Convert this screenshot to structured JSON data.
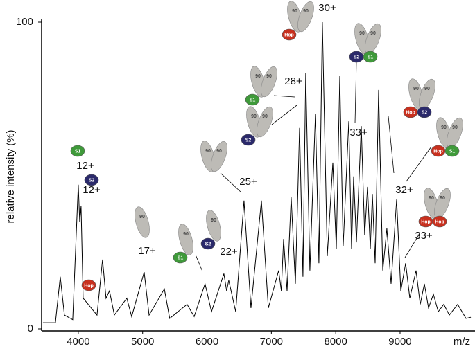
{
  "chart_data": {
    "type": "line",
    "y_label": "relative intensity (%)",
    "x_label": "m/z",
    "xlim": [
      3430,
      10110
    ],
    "ylim": [
      0,
      100
    ],
    "xticks": [
      4000,
      5000,
      6000,
      7000,
      8000,
      9000
    ],
    "yticks": [
      0,
      100
    ],
    "x": [
      3450,
      3644,
      3720,
      3785,
      3914,
      4000,
      4022,
      4043,
      4075,
      4291,
      4377,
      4431,
      4485,
      4560,
      4754,
      4830,
      5024,
      5100,
      5337,
      5420,
      5690,
      5800,
      5970,
      6070,
      6262,
      6305,
      6338,
      6446,
      6575,
      6683,
      6845,
      6953,
      7114,
      7155,
      7190,
      7244,
      7308,
      7373,
      7438,
      7491,
      7534,
      7599,
      7685,
      7739,
      7793,
      7869,
      7955,
      8009,
      8063,
      8116,
      8203,
      8246,
      8278,
      8321,
      8397,
      8450,
      8494,
      8537,
      8569,
      8612,
      8666,
      8731,
      8795,
      8860,
      8946,
      9011,
      9086,
      9151,
      9248,
      9313,
      9377,
      9442,
      9517,
      9593,
      9679,
      9765,
      9894,
      10024,
      10100
    ],
    "series": [
      {
        "color": "#000000",
        "values": [
          2,
          2,
          17,
          4.5,
          3,
          47,
          35,
          40,
          10,
          4.5,
          22.6,
          10,
          12.4,
          4.5,
          10,
          4,
          18.5,
          4.5,
          13,
          3.4,
          8,
          4,
          14.7,
          5.6,
          18,
          12.4,
          15.8,
          5.6,
          41.8,
          6.8,
          41.8,
          6.8,
          19,
          12.4,
          29.3,
          12.4,
          42.9,
          14.7,
          65.5,
          17,
          83.5,
          19,
          70,
          21.4,
          100,
          23.7,
          54.2,
          26,
          82.4,
          27,
          67.7,
          26,
          49.7,
          28.2,
          66.1,
          30.5,
          46.3,
          26,
          44,
          21.4,
          77.9,
          19,
          32.7,
          14.7,
          42.2,
          12.4,
          21.4,
          10,
          19,
          8,
          14.7,
          6.8,
          11.3,
          5.6,
          8,
          4.5,
          8,
          3.4,
          3.8
        ]
      }
    ],
    "annotations": [
      "12+",
      "12+",
      "17+",
      "22+",
      "25+",
      "28+",
      "30+",
      "33+",
      "32+",
      "33+"
    ],
    "subunit_colors": {
      "90": "#bdbbb6",
      "S1": "#3f9a3a",
      "S2": "#2b2a6b",
      "Hop": "#c8301e"
    },
    "complexes": [
      [
        "90",
        "90",
        "Hop"
      ],
      [
        "90",
        "90",
        "S2",
        "S1"
      ],
      [
        "90",
        "90",
        "S1"
      ],
      [
        "90",
        "90",
        "S2"
      ],
      [
        "90",
        "90"
      ],
      [
        "S1"
      ],
      [
        "S2"
      ],
      [
        "90"
      ],
      [
        "90",
        "S1"
      ],
      [
        "90",
        "S2"
      ],
      [
        "90",
        "90",
        "Hop",
        "S2"
      ],
      [
        "90",
        "90",
        "Hop",
        "S1"
      ],
      [
        "90",
        "90",
        "Hop",
        "Hop"
      ],
      [
        "Hop"
      ]
    ]
  }
}
